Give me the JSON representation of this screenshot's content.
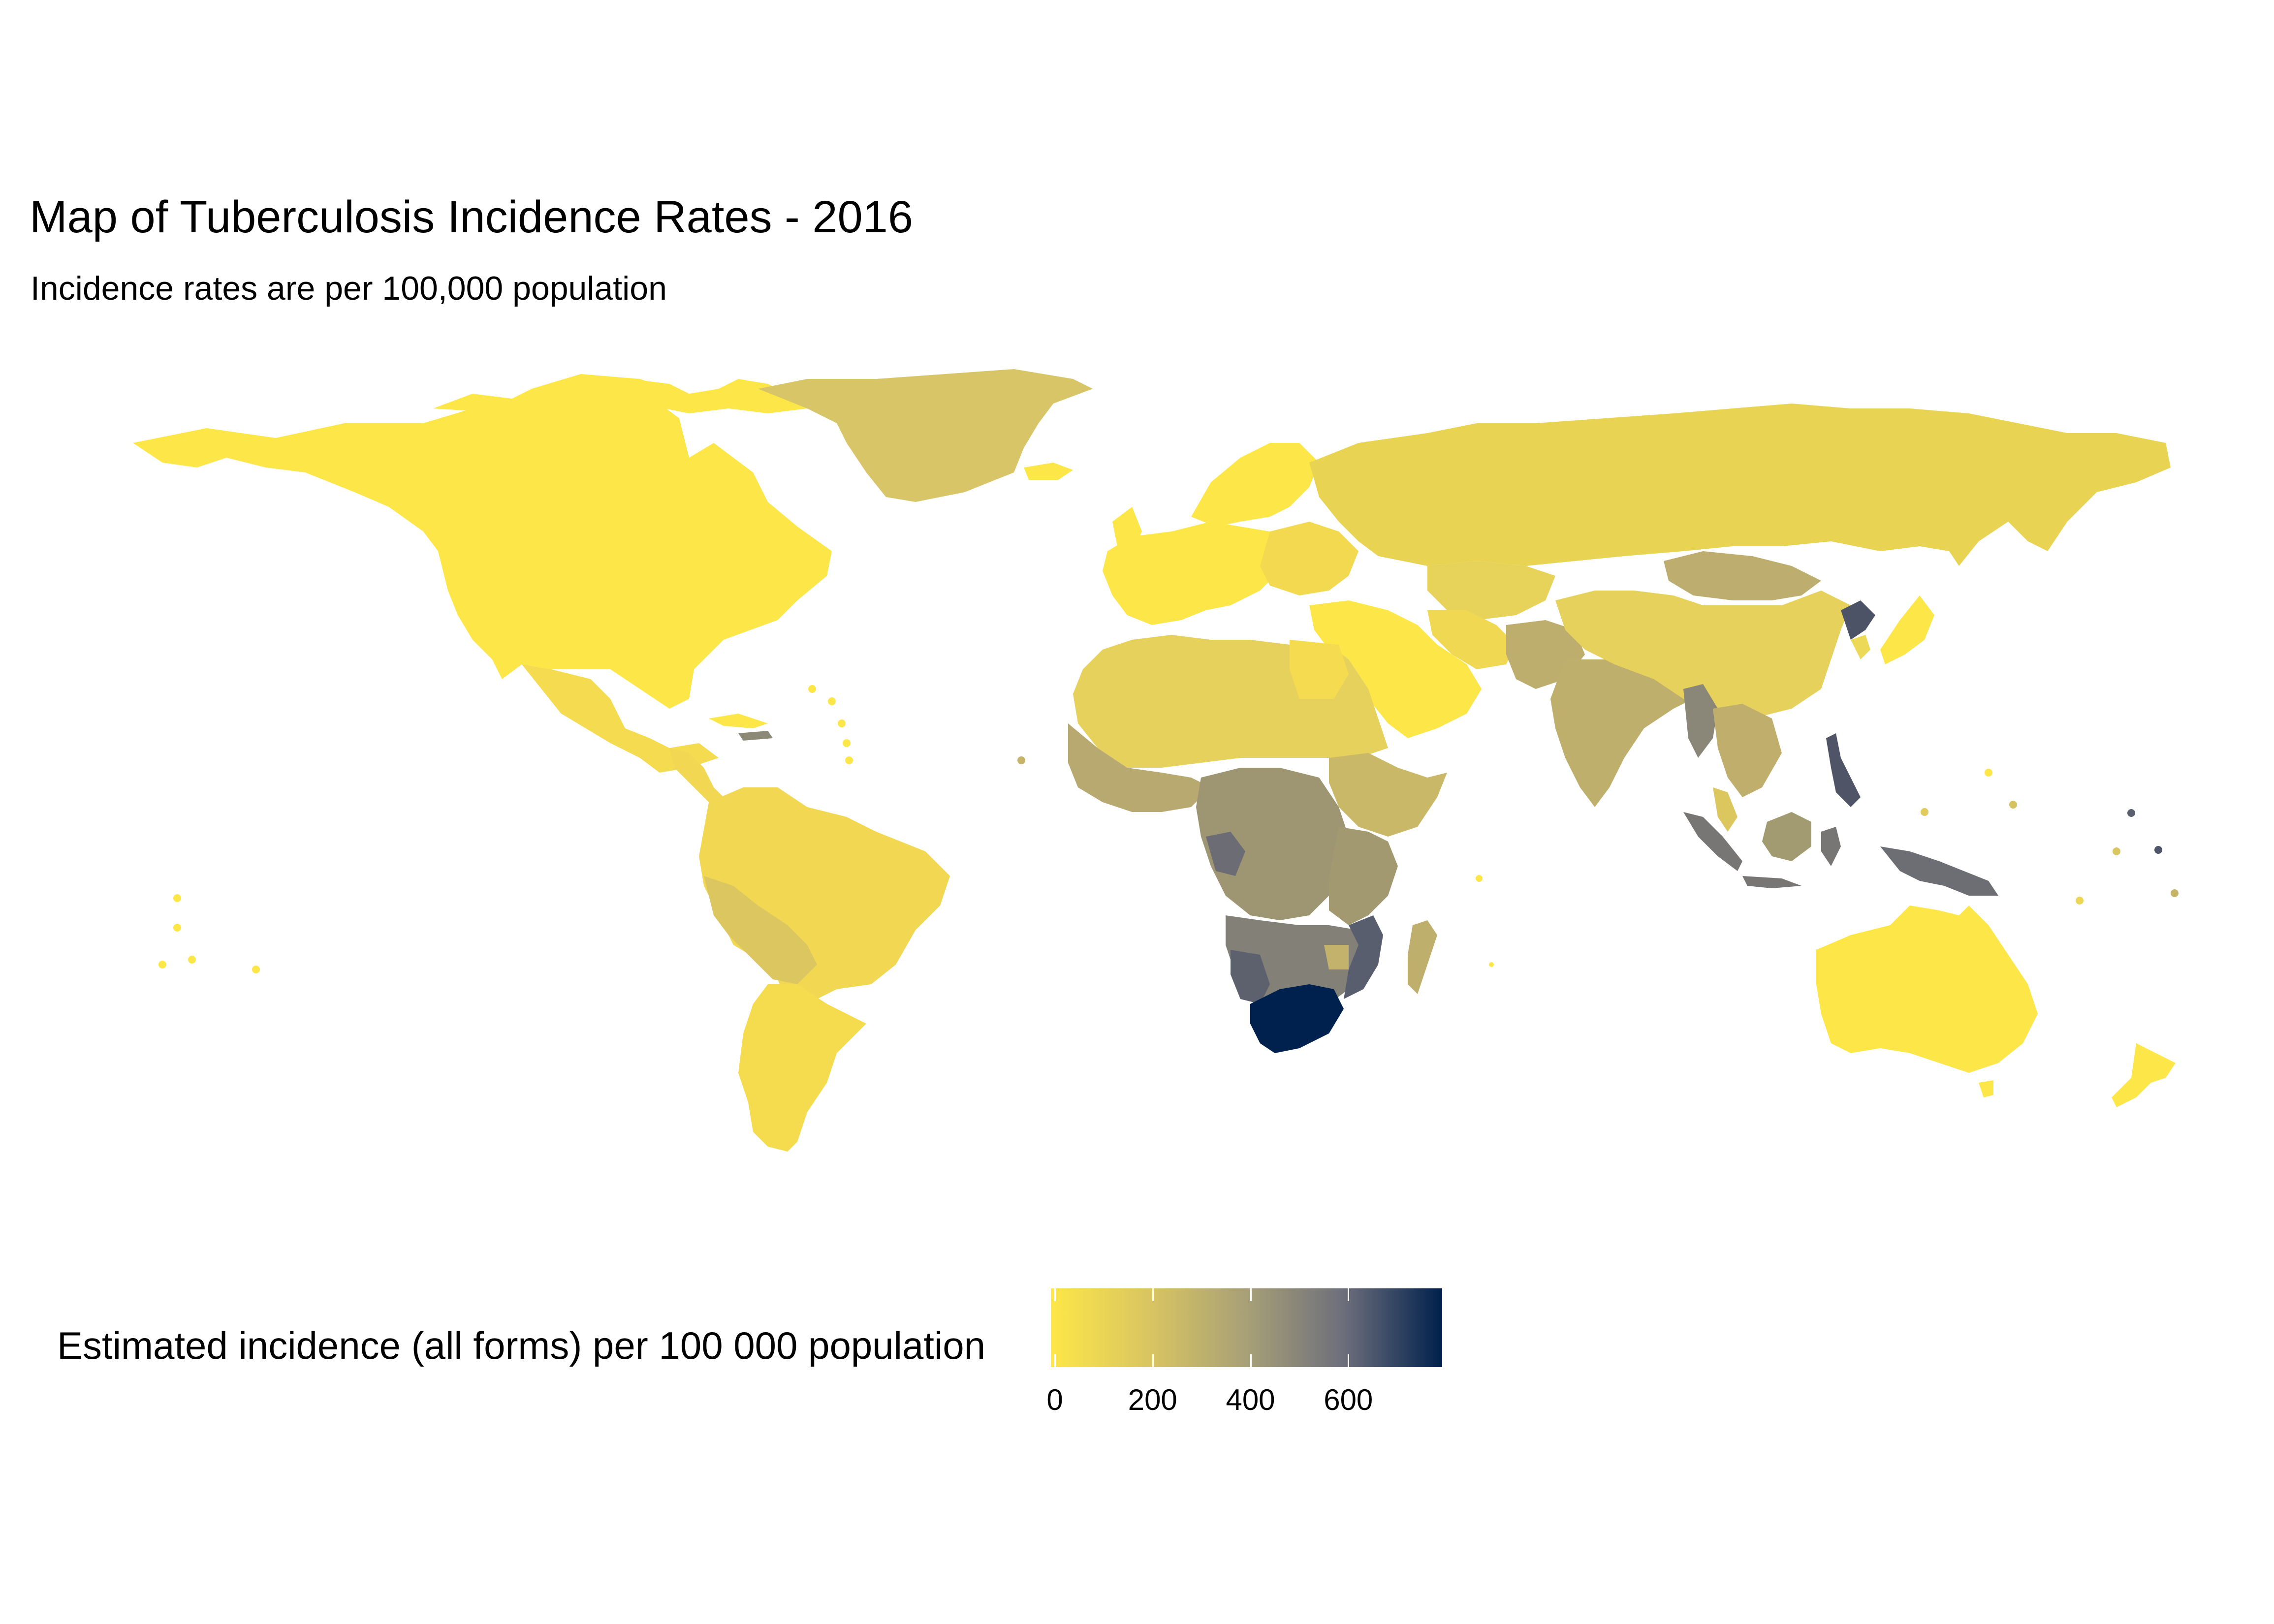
{
  "title": "Map of Tuberculosis Incidence Rates - 2016",
  "subtitle": "Incidence rates are per 100,000 population",
  "legend": {
    "title": "Estimated incidence (all forms) per 100 000 population",
    "ticks": [
      "0",
      "200",
      "400",
      "600"
    ],
    "tick_values": [
      0,
      200,
      400,
      600
    ],
    "range": [
      0,
      800
    ],
    "color_low": "#FDE748",
    "color_high": "#00204D"
  },
  "chart_data": {
    "type": "choropleth",
    "title": "Map of Tuberculosis Incidence Rates - 2016",
    "subtitle": "Incidence rates are per 100,000 population",
    "color_scale": {
      "name": "cividis",
      "min": 0,
      "max": 800
    },
    "regions": [
      {
        "name": "Canada",
        "value": 5
      },
      {
        "name": "United States",
        "value": 3
      },
      {
        "name": "Mexico",
        "value": 22
      },
      {
        "name": "Greenland",
        "value": 140
      },
      {
        "name": "Brazil",
        "value": 42
      },
      {
        "name": "Bolivia",
        "value": 114
      },
      {
        "name": "Peru",
        "value": 117
      },
      {
        "name": "Argentina",
        "value": 26
      },
      {
        "name": "Chile",
        "value": 16
      },
      {
        "name": "Western Europe",
        "value": 8
      },
      {
        "name": "Russia",
        "value": 66
      },
      {
        "name": "Kazakhstan",
        "value": 67
      },
      {
        "name": "Mongolia",
        "value": 428
      },
      {
        "name": "China",
        "value": 64
      },
      {
        "name": "India",
        "value": 211
      },
      {
        "name": "Pakistan",
        "value": 268
      },
      {
        "name": "Afghanistan",
        "value": 189
      },
      {
        "name": "Saudi Arabia",
        "value": 10
      },
      {
        "name": "Egypt",
        "value": 14
      },
      {
        "name": "Algeria",
        "value": 70
      },
      {
        "name": "Libya",
        "value": 40
      },
      {
        "name": "Mali",
        "value": 56
      },
      {
        "name": "Niger",
        "value": 90
      },
      {
        "name": "Chad",
        "value": 154
      },
      {
        "name": "Sudan",
        "value": 82
      },
      {
        "name": "Nigeria",
        "value": 219
      },
      {
        "name": "Ethiopia",
        "value": 177
      },
      {
        "name": "Somalia",
        "value": 270
      },
      {
        "name": "Kenya",
        "value": 348
      },
      {
        "name": "Tanzania",
        "value": 287
      },
      {
        "name": "DR Congo",
        "value": 323
      },
      {
        "name": "Central African Republic",
        "value": 423
      },
      {
        "name": "Gabon",
        "value": 529
      },
      {
        "name": "Angola",
        "value": 366
      },
      {
        "name": "Zambia",
        "value": 376
      },
      {
        "name": "Zimbabwe",
        "value": 242
      },
      {
        "name": "Mozambique",
        "value": 551
      },
      {
        "name": "Namibia",
        "value": 446
      },
      {
        "name": "Botswana",
        "value": 326
      },
      {
        "name": "South Africa",
        "value": 781
      },
      {
        "name": "Lesotho",
        "value": 724
      },
      {
        "name": "Madagascar",
        "value": 236
      },
      {
        "name": "Myanmar",
        "value": 361
      },
      {
        "name": "Thailand",
        "value": 172
      },
      {
        "name": "Cambodia",
        "value": 345
      },
      {
        "name": "Vietnam",
        "value": 133
      },
      {
        "name": "Malaysia",
        "value": 92
      },
      {
        "name": "Indonesia",
        "value": 391
      },
      {
        "name": "Philippines",
        "value": 554
      },
      {
        "name": "Papua New Guinea",
        "value": 432
      },
      {
        "name": "North Korea",
        "value": 641
      },
      {
        "name": "South Korea",
        "value": 77
      },
      {
        "name": "Japan",
        "value": 14
      },
      {
        "name": "Australia",
        "value": 6
      },
      {
        "name": "New Zealand",
        "value": 7
      }
    ]
  }
}
